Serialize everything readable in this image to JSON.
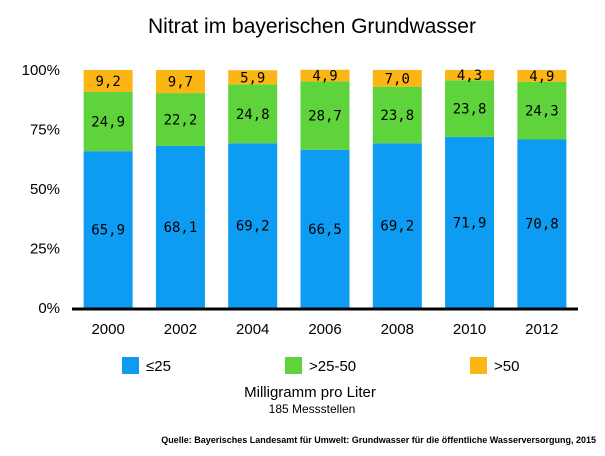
{
  "chart_data": {
    "type": "bar",
    "stacked": true,
    "title": "Nitrat im bayerischen Grundwasser",
    "categories": [
      "2000",
      "2002",
      "2004",
      "2006",
      "2008",
      "2010",
      "2012"
    ],
    "series": [
      {
        "name": "≤25",
        "color": "#0d9cf2",
        "values": [
          65.9,
          68.1,
          69.2,
          66.5,
          69.2,
          71.9,
          70.8
        ],
        "labels": [
          "65,9",
          "68,1",
          "69,2",
          "66,5",
          "69,2",
          "71,9",
          "70,8"
        ]
      },
      {
        "name": ">25-50",
        "color": "#5fd33b",
        "values": [
          24.9,
          22.2,
          24.8,
          28.7,
          23.8,
          23.8,
          24.3
        ],
        "labels": [
          "24,9",
          "22,2",
          "24,8",
          "28,7",
          "23,8",
          "23,8",
          "24,3"
        ]
      },
      {
        "name": ">50",
        "color": "#fbb616",
        "values": [
          9.2,
          9.7,
          5.9,
          4.9,
          7.0,
          4.3,
          4.9
        ],
        "labels": [
          "9,2",
          "9,7",
          "5,9",
          "4,9",
          "7,0",
          "4,3",
          "4,9"
        ]
      }
    ],
    "ylim": [
      0,
      100
    ],
    "yticks": [
      0,
      25,
      50,
      75,
      100
    ],
    "ytick_labels": [
      "0%",
      "25%",
      "50%",
      "75%",
      "100%"
    ],
    "grid": false,
    "legend_position": "bottom",
    "unit_label": "Milligramm pro Liter",
    "sub_label": "185 Messstellen",
    "source": "Quelle: Bayerisches Landesamt für Umwelt: Grundwasser für die öffentliche Wasserversorgung, 2015"
  }
}
